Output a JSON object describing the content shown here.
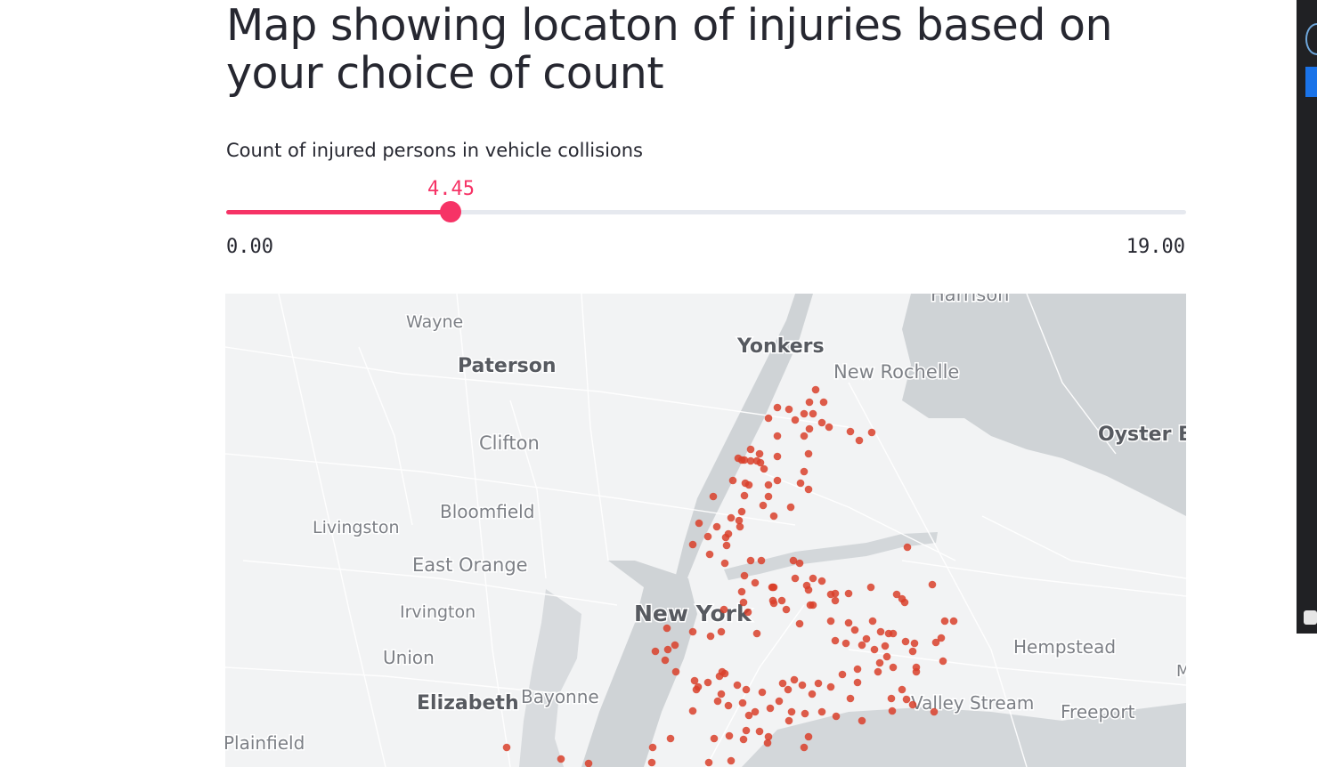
{
  "page": {
    "title": "Map showing locaton of injuries based on your choice of count"
  },
  "slider": {
    "label": "Count of injured persons in vehicle collisions",
    "value": 4.45,
    "value_text": "4.45",
    "min": 0,
    "max": 19,
    "min_text": "0.00",
    "max_text": "19.00",
    "accent_color": "#f63366",
    "track_color": "#e6e9ef"
  },
  "map": {
    "marker_color": "#d9402a",
    "places": [
      {
        "name": "Harrison",
        "major": false
      },
      {
        "name": "Wayne",
        "major": false
      },
      {
        "name": "Yonkers",
        "major": true
      },
      {
        "name": "New Rochelle",
        "major": false
      },
      {
        "name": "Paterson",
        "major": true
      },
      {
        "name": "Clifton",
        "major": false
      },
      {
        "name": "Oyster Ba",
        "major": true
      },
      {
        "name": "Bloomfield",
        "major": false
      },
      {
        "name": "Livingston",
        "major": false
      },
      {
        "name": "East Orange",
        "major": false
      },
      {
        "name": "Irvington",
        "major": false
      },
      {
        "name": "New York",
        "major": true
      },
      {
        "name": "Hempstead",
        "major": false
      },
      {
        "name": "Union",
        "major": false
      },
      {
        "name": "Elizabeth",
        "major": true
      },
      {
        "name": "Bayonne",
        "major": false
      },
      {
        "name": "Valley Stream",
        "major": false
      },
      {
        "name": "Freeport",
        "major": false
      },
      {
        "name": "Plainfield",
        "major": false
      },
      {
        "name": "M",
        "major": false
      }
    ]
  }
}
